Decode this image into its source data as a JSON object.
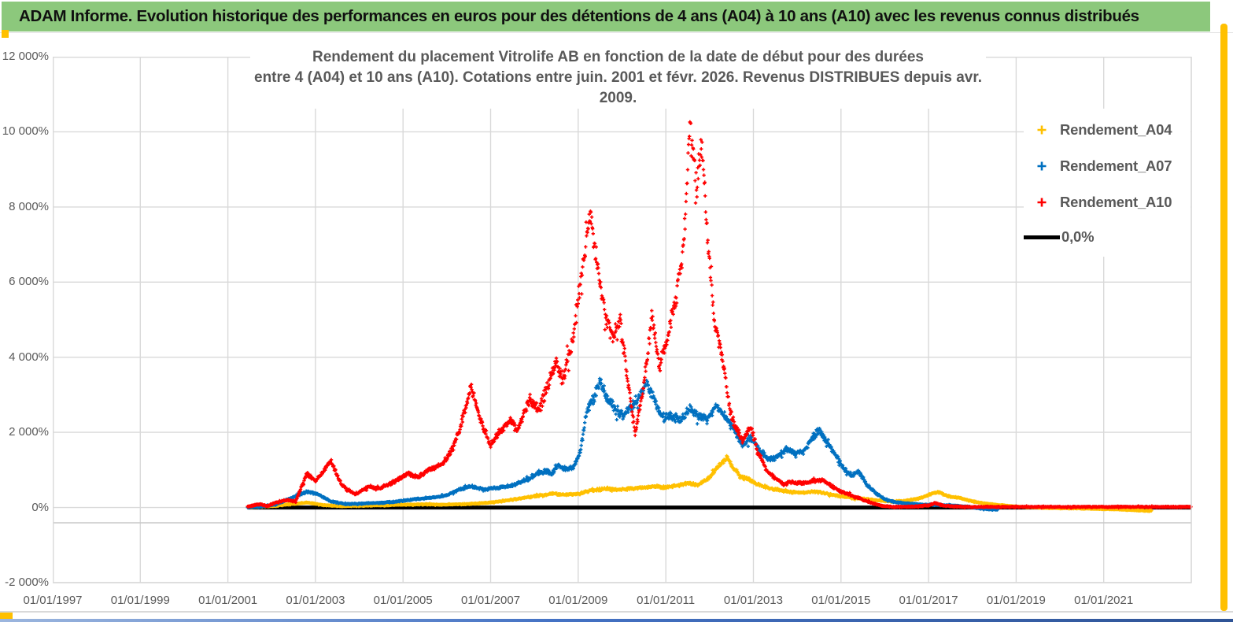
{
  "page": {
    "header": {
      "title": "ADAM Informe. Evolution historique des performances en euros pour des détentions de 4 ans (A04) à 10 ans (A10) avec les revenus connus distribués"
    },
    "accent_colors": {
      "header_green": "#8CC87C",
      "frame_gold": "#FFC000",
      "bottom_bar_blue": "#4472C4"
    }
  },
  "chart_data": {
    "type": "scatter",
    "title_line1": "Rendement du placement Vitrolife AB en fonction de la date de début pour des durées",
    "title_line2": "entre 4 (A04) et 10 ans (A10).  Cotations entre juin. 2001 et févr. 2026. Revenus DISTRIBUES depuis avr. 2009.",
    "xlabel": "",
    "ylabel": "",
    "xlim": [
      1997.0,
      2023.0
    ],
    "ylim": [
      -2000,
      12000
    ],
    "grid": true,
    "legend_position": "inside-right",
    "marker": "+",
    "samples_per_year": 100,
    "x_ticks": [
      {
        "year": 1997,
        "label": "01/01/1997"
      },
      {
        "year": 1999,
        "label": "01/01/1999"
      },
      {
        "year": 2001,
        "label": "01/01/2001"
      },
      {
        "year": 2003,
        "label": "01/01/2003"
      },
      {
        "year": 2005,
        "label": "01/01/2005"
      },
      {
        "year": 2007,
        "label": "01/01/2007"
      },
      {
        "year": 2009,
        "label": "01/01/2009"
      },
      {
        "year": 2011,
        "label": "01/01/2011"
      },
      {
        "year": 2013,
        "label": "01/01/2013"
      },
      {
        "year": 2015,
        "label": "01/01/2015"
      },
      {
        "year": 2017,
        "label": "01/01/2017"
      },
      {
        "year": 2019,
        "label": "01/01/2019"
      },
      {
        "year": 2021,
        "label": "01/01/2021"
      }
    ],
    "y_ticks": [
      {
        "value": 12000,
        "label": "12 000%"
      },
      {
        "value": 10000,
        "label": "10 000%"
      },
      {
        "value": 8000,
        "label": "8 000%"
      },
      {
        "value": 6000,
        "label": "6 000%"
      },
      {
        "value": 4000,
        "label": "4 000%"
      },
      {
        "value": 2000,
        "label": "2 000%"
      },
      {
        "value": 0,
        "label": "0%"
      },
      {
        "value": -2000,
        "label": "-2 000%"
      }
    ],
    "series": [
      {
        "name": "Rendement_A04",
        "color": "#FFC000",
        "kind": "scatter",
        "scatter_band": {
          "base": 10,
          "frac": 0.055
        },
        "anchors": [
          [
            2001.45,
            5
          ],
          [
            2002.0,
            35
          ],
          [
            2002.45,
            90
          ],
          [
            2002.8,
            130
          ],
          [
            2003.2,
            60
          ],
          [
            2003.6,
            35
          ],
          [
            2004.0,
            45
          ],
          [
            2004.5,
            60
          ],
          [
            2005.0,
            75
          ],
          [
            2005.5,
            85
          ],
          [
            2006.0,
            75
          ],
          [
            2006.5,
            95
          ],
          [
            2007.0,
            130
          ],
          [
            2007.5,
            210
          ],
          [
            2008.0,
            300
          ],
          [
            2008.4,
            370
          ],
          [
            2008.7,
            340
          ],
          [
            2009.0,
            360
          ],
          [
            2009.3,
            450
          ],
          [
            2009.6,
            500
          ],
          [
            2009.9,
            470
          ],
          [
            2010.2,
            500
          ],
          [
            2010.5,
            530
          ],
          [
            2010.8,
            560
          ],
          [
            2011.0,
            530
          ],
          [
            2011.25,
            590
          ],
          [
            2011.5,
            640
          ],
          [
            2011.75,
            600
          ],
          [
            2012.0,
            800
          ],
          [
            2012.2,
            1100
          ],
          [
            2012.4,
            1330
          ],
          [
            2012.55,
            1050
          ],
          [
            2012.7,
            820
          ],
          [
            2012.9,
            740
          ],
          [
            2013.1,
            620
          ],
          [
            2013.35,
            520
          ],
          [
            2013.6,
            460
          ],
          [
            2013.85,
            410
          ],
          [
            2014.1,
            390
          ],
          [
            2014.4,
            430
          ],
          [
            2014.7,
            360
          ],
          [
            2015.0,
            300
          ],
          [
            2015.3,
            250
          ],
          [
            2015.6,
            220
          ],
          [
            2015.9,
            185
          ],
          [
            2016.2,
            155
          ],
          [
            2016.5,
            185
          ],
          [
            2016.75,
            230
          ],
          [
            2017.0,
            330
          ],
          [
            2017.2,
            420
          ],
          [
            2017.45,
            300
          ],
          [
            2017.7,
            260
          ],
          [
            2018.0,
            160
          ],
          [
            2018.3,
            105
          ],
          [
            2018.6,
            65
          ],
          [
            2019.0,
            25
          ],
          [
            2019.4,
            0
          ],
          [
            2019.8,
            -15
          ],
          [
            2020.3,
            -25
          ],
          [
            2020.8,
            -35
          ],
          [
            2021.3,
            -50
          ],
          [
            2021.7,
            -70
          ],
          [
            2022.1,
            -90
          ]
        ]
      },
      {
        "name": "Rendement_A07",
        "color": "#0070C0",
        "kind": "scatter",
        "scatter_band": {
          "base": 12,
          "frac": 0.05
        },
        "anchors": [
          [
            2001.45,
            5
          ],
          [
            2001.8,
            30
          ],
          [
            2002.1,
            80
          ],
          [
            2002.45,
            260
          ],
          [
            2002.8,
            420
          ],
          [
            2003.05,
            360
          ],
          [
            2003.35,
            160
          ],
          [
            2003.7,
            90
          ],
          [
            2004.0,
            100
          ],
          [
            2004.4,
            120
          ],
          [
            2004.8,
            150
          ],
          [
            2005.2,
            210
          ],
          [
            2005.6,
            260
          ],
          [
            2005.95,
            300
          ],
          [
            2006.25,
            470
          ],
          [
            2006.55,
            560
          ],
          [
            2006.85,
            480
          ],
          [
            2007.15,
            520
          ],
          [
            2007.5,
            590
          ],
          [
            2007.8,
            720
          ],
          [
            2008.05,
            880
          ],
          [
            2008.25,
            980
          ],
          [
            2008.4,
            900
          ],
          [
            2008.55,
            1130
          ],
          [
            2008.7,
            1000
          ],
          [
            2008.9,
            1080
          ],
          [
            2009.05,
            1500
          ],
          [
            2009.2,
            2600
          ],
          [
            2009.35,
            2900
          ],
          [
            2009.5,
            3350
          ],
          [
            2009.65,
            2950
          ],
          [
            2009.85,
            2600
          ],
          [
            2010.05,
            2450
          ],
          [
            2010.25,
            2750
          ],
          [
            2010.45,
            3050
          ],
          [
            2010.58,
            3300
          ],
          [
            2010.75,
            2800
          ],
          [
            2010.95,
            2350
          ],
          [
            2011.15,
            2450
          ],
          [
            2011.35,
            2350
          ],
          [
            2011.55,
            2650
          ],
          [
            2011.75,
            2450
          ],
          [
            2011.95,
            2350
          ],
          [
            2012.15,
            2700
          ],
          [
            2012.35,
            2450
          ],
          [
            2012.55,
            2100
          ],
          [
            2012.75,
            1650
          ],
          [
            2012.95,
            1850
          ],
          [
            2013.15,
            1500
          ],
          [
            2013.35,
            1280
          ],
          [
            2013.55,
            1350
          ],
          [
            2013.75,
            1550
          ],
          [
            2013.95,
            1450
          ],
          [
            2014.15,
            1500
          ],
          [
            2014.35,
            1850
          ],
          [
            2014.5,
            2080
          ],
          [
            2014.65,
            1800
          ],
          [
            2014.85,
            1450
          ],
          [
            2015.05,
            1050
          ],
          [
            2015.25,
            850
          ],
          [
            2015.4,
            950
          ],
          [
            2015.6,
            600
          ],
          [
            2015.8,
            380
          ],
          [
            2016.0,
            220
          ],
          [
            2016.3,
            130
          ],
          [
            2016.7,
            90
          ],
          [
            2017.1,
            70
          ],
          [
            2017.5,
            60
          ],
          [
            2017.9,
            20
          ],
          [
            2018.2,
            -30
          ],
          [
            2018.45,
            -55
          ],
          [
            2018.6,
            -50
          ]
        ]
      },
      {
        "name": "Rendement_A10",
        "color": "#FF0000",
        "kind": "scatter",
        "scatter_band": {
          "base": 15,
          "frac": 0.05
        },
        "anchors": [
          [
            2001.45,
            20
          ],
          [
            2001.7,
            90
          ],
          [
            2001.9,
            40
          ],
          [
            2002.1,
            130
          ],
          [
            2002.35,
            200
          ],
          [
            2002.55,
            160
          ],
          [
            2002.8,
            900
          ],
          [
            2003.0,
            700
          ],
          [
            2003.35,
            1230
          ],
          [
            2003.6,
            600
          ],
          [
            2003.9,
            350
          ],
          [
            2004.2,
            550
          ],
          [
            2004.5,
            520
          ],
          [
            2004.8,
            680
          ],
          [
            2005.1,
            900
          ],
          [
            2005.35,
            820
          ],
          [
            2005.6,
            1000
          ],
          [
            2005.9,
            1150
          ],
          [
            2006.1,
            1500
          ],
          [
            2006.3,
            2100
          ],
          [
            2006.55,
            3260
          ],
          [
            2006.75,
            2400
          ],
          [
            2007.0,
            1650
          ],
          [
            2007.2,
            2000
          ],
          [
            2007.45,
            2300
          ],
          [
            2007.6,
            2050
          ],
          [
            2007.9,
            2900
          ],
          [
            2008.1,
            2600
          ],
          [
            2008.3,
            3200
          ],
          [
            2008.5,
            3900
          ],
          [
            2008.65,
            3400
          ],
          [
            2008.9,
            4600
          ],
          [
            2009.05,
            6000
          ],
          [
            2009.27,
            7880
          ],
          [
            2009.45,
            6300
          ],
          [
            2009.6,
            5200
          ],
          [
            2009.8,
            4500
          ],
          [
            2009.95,
            5000
          ],
          [
            2010.1,
            3700
          ],
          [
            2010.3,
            1950
          ],
          [
            2010.5,
            3300
          ],
          [
            2010.68,
            5100
          ],
          [
            2010.85,
            3800
          ],
          [
            2011.0,
            4300
          ],
          [
            2011.2,
            5400
          ],
          [
            2011.4,
            6900
          ],
          [
            2011.55,
            10100
          ],
          [
            2011.7,
            8600
          ],
          [
            2011.82,
            9700
          ],
          [
            2011.95,
            7200
          ],
          [
            2012.1,
            5000
          ],
          [
            2012.3,
            4000
          ],
          [
            2012.45,
            2700
          ],
          [
            2012.6,
            2100
          ],
          [
            2012.75,
            1800
          ],
          [
            2012.95,
            2150
          ],
          [
            2013.1,
            1500
          ],
          [
            2013.3,
            1000
          ],
          [
            2013.5,
            780
          ],
          [
            2013.7,
            620
          ],
          [
            2013.9,
            680
          ],
          [
            2014.1,
            640
          ],
          [
            2014.35,
            700
          ],
          [
            2014.6,
            720
          ],
          [
            2014.8,
            560
          ],
          [
            2015.0,
            420
          ],
          [
            2015.2,
            340
          ],
          [
            2015.45,
            230
          ],
          [
            2015.7,
            120
          ],
          [
            2015.95,
            40
          ],
          [
            2016.2,
            15
          ],
          [
            2016.6,
            20
          ],
          [
            2017.0,
            60
          ],
          [
            2017.15,
            120
          ],
          [
            2017.3,
            60
          ],
          [
            2017.6,
            25
          ],
          [
            2018.0,
            15
          ],
          [
            2019.0,
            15
          ],
          [
            2020.0,
            15
          ],
          [
            2021.0,
            15
          ],
          [
            2022.0,
            15
          ],
          [
            2023.0,
            15
          ]
        ]
      },
      {
        "name": "0,0%",
        "color": "#000000",
        "kind": "line",
        "width": 5,
        "points": [
          [
            2001.45,
            0
          ],
          [
            2023.0,
            0
          ]
        ]
      }
    ]
  }
}
